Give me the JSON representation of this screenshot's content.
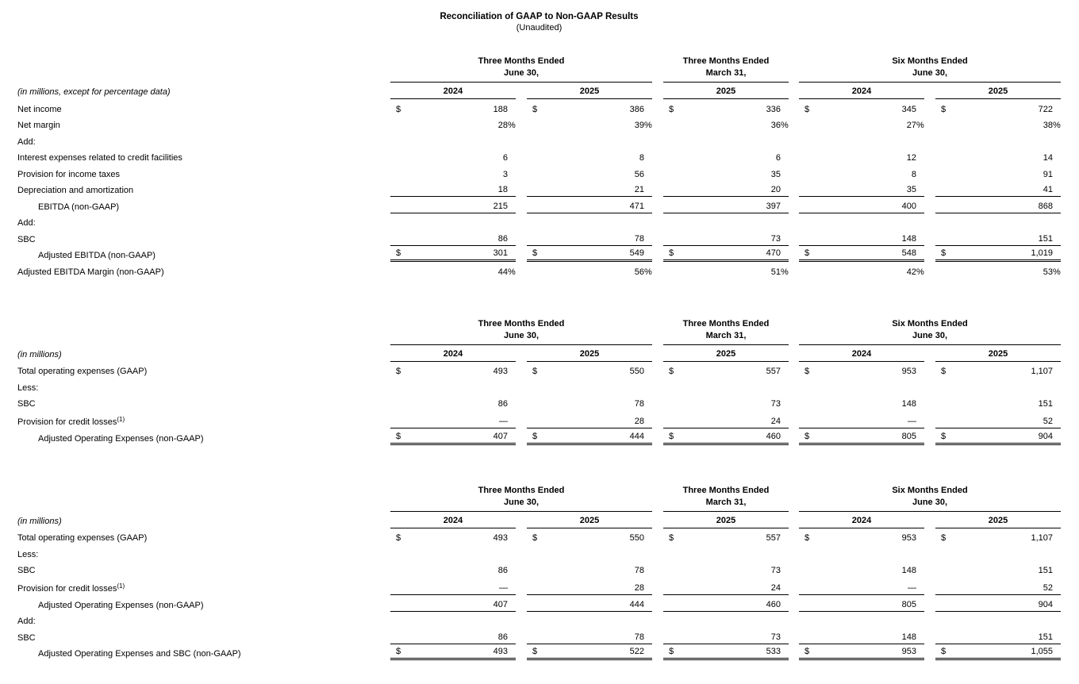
{
  "currency_symbol": "$",
  "page": {
    "title": "Reconciliation of GAAP to Non-GAAP Results",
    "subtitle": "(Unaudited)"
  },
  "columns": {
    "groups": [
      {
        "title_line1": "Three Months Ended",
        "title_line2": "June 30,",
        "years": [
          "2024",
          "2025"
        ]
      },
      {
        "title_line1": "Three Months Ended",
        "title_line2": "March 31,",
        "years": [
          "2025"
        ]
      },
      {
        "title_line1": "Six Months Ended",
        "title_line2": "June 30,",
        "years": [
          "2024",
          "2025"
        ]
      }
    ]
  },
  "tables": [
    {
      "note": "(in millions, except for percentage data)",
      "rows": [
        {
          "label": "Net income",
          "dollar": true,
          "values": [
            "188",
            "386",
            "336",
            "345",
            "722"
          ]
        },
        {
          "label": "Net margin",
          "values": [
            "28%",
            "39%",
            "36%",
            "27%",
            "38%"
          ]
        },
        {
          "label": "Add:",
          "values": []
        },
        {
          "label": "Interest expenses related to credit facilities",
          "values": [
            "6",
            "8",
            "6",
            "12",
            "14"
          ]
        },
        {
          "label": "Provision for income taxes",
          "values": [
            "3",
            "56",
            "35",
            "8",
            "91"
          ]
        },
        {
          "label": "Depreciation and amortization",
          "values": [
            "18",
            "21",
            "20",
            "35",
            "41"
          ],
          "border": "single"
        },
        {
          "label": "EBITDA (non-GAAP)",
          "indent": true,
          "values": [
            "215",
            "471",
            "397",
            "400",
            "868"
          ],
          "border": "single"
        },
        {
          "label": "Add:",
          "values": []
        },
        {
          "label": "SBC",
          "values": [
            "86",
            "78",
            "73",
            "148",
            "151"
          ],
          "border": "single"
        },
        {
          "label": "Adjusted EBITDA (non-GAAP)",
          "indent": true,
          "dollar": true,
          "values": [
            "301",
            "549",
            "470",
            "548",
            "1,019"
          ],
          "border": "double"
        },
        {
          "label": "Adjusted EBITDA Margin (non-GAAP)",
          "values": [
            "44%",
            "56%",
            "51%",
            "42%",
            "53%"
          ]
        }
      ]
    },
    {
      "note": "(in millions)",
      "rows": [
        {
          "label": "Total operating expenses (GAAP)",
          "dollar": true,
          "values": [
            "493",
            "550",
            "557",
            "953",
            "1,107"
          ]
        },
        {
          "label": "Less:",
          "values": []
        },
        {
          "label": "SBC",
          "values": [
            "86",
            "78",
            "73",
            "148",
            "151"
          ]
        },
        {
          "label": "Provision for credit losses",
          "label_sup": "(1)",
          "values": [
            "—",
            "28",
            "24",
            "—",
            "52"
          ],
          "border": "single"
        },
        {
          "label": "Adjusted Operating Expenses (non-GAAP)",
          "indent": true,
          "dollar": true,
          "values": [
            "407",
            "444",
            "460",
            "805",
            "904"
          ],
          "border": "double"
        }
      ]
    },
    {
      "note": "(in millions)",
      "rows": [
        {
          "label": "Total operating expenses (GAAP)",
          "dollar": true,
          "values": [
            "493",
            "550",
            "557",
            "953",
            "1,107"
          ]
        },
        {
          "label": "Less:",
          "values": []
        },
        {
          "label": "SBC",
          "values": [
            "86",
            "78",
            "73",
            "148",
            "151"
          ]
        },
        {
          "label": "Provision for credit losses",
          "label_sup": "(1)",
          "values": [
            "—",
            "28",
            "24",
            "—",
            "52"
          ],
          "border": "single"
        },
        {
          "label": "Adjusted Operating Expenses (non-GAAP)",
          "indent": true,
          "values": [
            "407",
            "444",
            "460",
            "805",
            "904"
          ],
          "border": "single"
        },
        {
          "label": "Add:",
          "values": []
        },
        {
          "label": "SBC",
          "values": [
            "86",
            "78",
            "73",
            "148",
            "151"
          ],
          "border": "single"
        },
        {
          "label": "Adjusted Operating Expenses and SBC (non-GAAP)",
          "indent": true,
          "dollar": true,
          "values": [
            "493",
            "522",
            "533",
            "953",
            "1,055"
          ],
          "border": "double"
        }
      ]
    }
  ]
}
